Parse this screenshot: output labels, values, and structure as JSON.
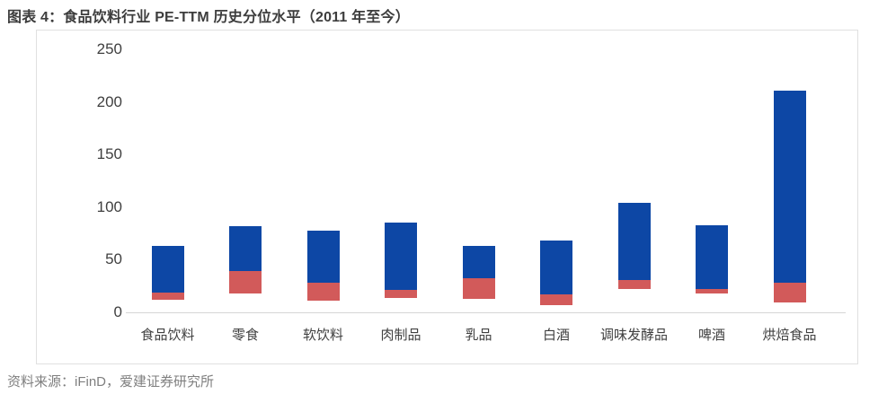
{
  "title": "图表 4：食品饮料行业 PE-TTM 历史分位水平（2011 年至今）",
  "source": "资料来源：iFinD，爱建证券研究所",
  "colors": {
    "bar_blue": "#0d47a5",
    "bar_red": "#d25a5a",
    "axis_line": "#d6d6d6",
    "box_border": "#e0e0e0",
    "title_text": "#3d3d3d",
    "axis_text": "#404040",
    "source_text": "#7f7f7f"
  },
  "chart_data": {
    "type": "bar",
    "subtype": "floating-stacked-range",
    "title": "食品饮料行业 PE-TTM 历史分位水平（2011 年至今）",
    "xlabel": "",
    "ylabel": "",
    "ylim": [
      0,
      250
    ],
    "y_ticks": [
      0,
      50,
      100,
      150,
      200,
      250
    ],
    "grid": false,
    "legend": "none",
    "categories": [
      "食品饮料",
      "零食",
      "软饮料",
      "肉制品",
      "乳品",
      "白酒",
      "调味发酵品",
      "啤酒",
      "烘焙食品"
    ],
    "series": [
      {
        "name": "lower-range-red",
        "color": "#d25a5a",
        "from": [
          12,
          18,
          11,
          14,
          13,
          7,
          22,
          18,
          9
        ],
        "to": [
          19,
          39,
          28,
          21,
          32,
          17,
          31,
          22,
          28
        ]
      },
      {
        "name": "upper-range-blue",
        "color": "#0d47a5",
        "from": [
          19,
          39,
          28,
          21,
          32,
          17,
          31,
          22,
          28
        ],
        "to": [
          63,
          82,
          78,
          85,
          63,
          68,
          104,
          83,
          211
        ]
      }
    ]
  }
}
